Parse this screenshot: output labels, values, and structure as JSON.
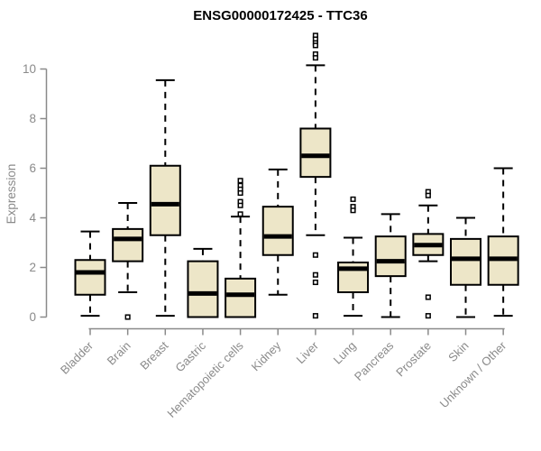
{
  "chart_data": {
    "type": "boxplot",
    "title": "ENSG00000172425 - TTC36",
    "ylabel": "Expression",
    "xlabel": "",
    "ylim": [
      0,
      11.6
    ],
    "yticks": [
      0,
      2,
      4,
      6,
      8,
      10
    ],
    "grid": false,
    "legend": false,
    "box_fill": "#ede6c8",
    "box_border": "#000000",
    "median_color": "#000000",
    "axis_color": "#8a8a8a",
    "title_color": "#000000",
    "categories": [
      "Bladder",
      "Brain",
      "Breast",
      "Gastric",
      "Hematopoietic cells",
      "Kidney",
      "Liver",
      "Lung",
      "Pancreas",
      "Prostate",
      "Skin",
      "Unknown / Other"
    ],
    "boxes": [
      {
        "category": "Bladder",
        "whisker_low": 0.05,
        "q1": 0.9,
        "median": 1.8,
        "q3": 2.3,
        "whisker_high": 3.45,
        "outliers": []
      },
      {
        "category": "Brain",
        "whisker_low": 1.0,
        "q1": 2.25,
        "median": 3.15,
        "q3": 3.55,
        "whisker_high": 4.6,
        "outliers": [
          0.0
        ]
      },
      {
        "category": "Breast",
        "whisker_low": 0.05,
        "q1": 3.3,
        "median": 4.55,
        "q3": 6.1,
        "whisker_high": 9.55,
        "outliers": []
      },
      {
        "category": "Gastric",
        "whisker_low": 0.0,
        "q1": 0.0,
        "median": 0.95,
        "q3": 2.25,
        "whisker_high": 2.75,
        "outliers": []
      },
      {
        "category": "Hematopoietic cells",
        "whisker_low": 0.0,
        "q1": 0.0,
        "median": 0.9,
        "q3": 1.55,
        "whisker_high": 4.05,
        "outliers": [
          5.5,
          5.3,
          5.15,
          5.0,
          4.65,
          4.5,
          4.15
        ]
      },
      {
        "category": "Kidney",
        "whisker_low": 0.9,
        "q1": 2.5,
        "median": 3.25,
        "q3": 4.45,
        "whisker_high": 5.95,
        "outliers": []
      },
      {
        "category": "Liver",
        "whisker_low": 3.3,
        "q1": 5.65,
        "median": 6.5,
        "q3": 7.6,
        "whisker_high": 10.15,
        "outliers": [
          11.35,
          11.2,
          11.05,
          10.95,
          10.6,
          10.45,
          2.5,
          1.7,
          1.4,
          0.05
        ]
      },
      {
        "category": "Lung",
        "whisker_low": 0.05,
        "q1": 1.0,
        "median": 1.95,
        "q3": 2.2,
        "whisker_high": 3.2,
        "outliers": [
          4.75,
          4.45,
          4.3
        ]
      },
      {
        "category": "Pancreas",
        "whisker_low": 0.0,
        "q1": 1.65,
        "median": 2.25,
        "q3": 3.25,
        "whisker_high": 4.15,
        "outliers": []
      },
      {
        "category": "Prostate",
        "whisker_low": 2.25,
        "q1": 2.5,
        "median": 2.9,
        "q3": 3.35,
        "whisker_high": 4.5,
        "outliers": [
          5.05,
          4.9,
          0.8,
          0.05
        ]
      },
      {
        "category": "Skin",
        "whisker_low": 0.0,
        "q1": 1.3,
        "median": 2.35,
        "q3": 3.15,
        "whisker_high": 4.0,
        "outliers": []
      },
      {
        "category": "Unknown / Other",
        "whisker_low": 0.05,
        "q1": 1.3,
        "median": 2.35,
        "q3": 3.25,
        "whisker_high": 6.0,
        "outliers": []
      }
    ]
  }
}
